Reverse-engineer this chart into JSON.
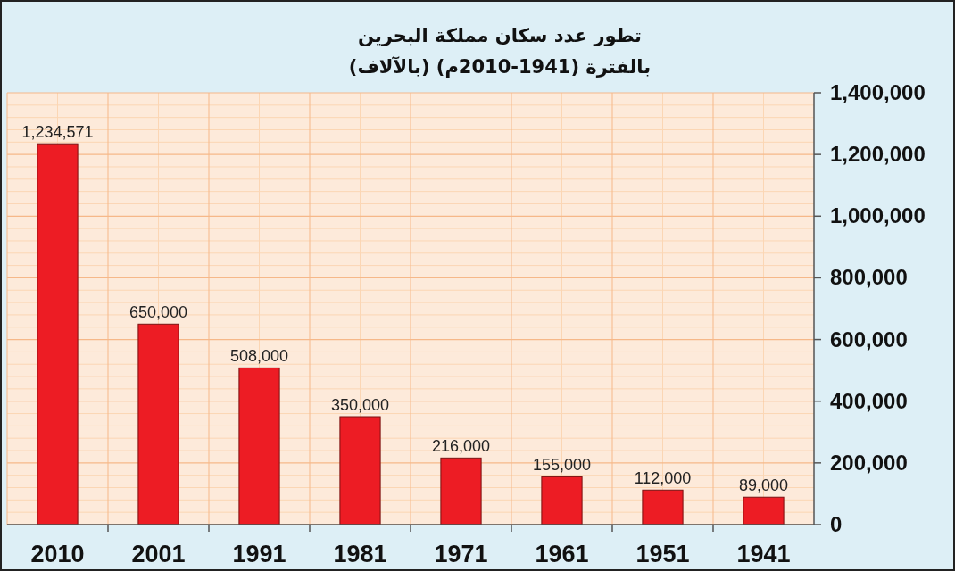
{
  "chart_data": {
    "type": "bar",
    "title": "تطور عدد سكان مملكة البحرين",
    "subtitle": "بالفترة (1941-2010م) (بالآلاف)",
    "categories": [
      "2010",
      "2001",
      "1991",
      "1981",
      "1971",
      "1961",
      "1951",
      "1941"
    ],
    "values": [
      1234571,
      650000,
      508000,
      350000,
      216000,
      155000,
      112000,
      89000
    ],
    "value_labels": [
      "1,234,571",
      "650,000",
      "508,000",
      "350,000",
      "216,000",
      "155,000",
      "112,000",
      "89,000"
    ],
    "color": "#ed1c24",
    "ylim": [
      0,
      1400000
    ],
    "yticks": [
      0,
      {
        "value": 200000,
        "label": "200,000"
      },
      {
        "value": 400000,
        "label": "400,000"
      },
      {
        "value": 600000,
        "label": "600,000"
      },
      {
        "value": 800000,
        "label": "800,000"
      },
      {
        "value": 1000000,
        "label": "1,000,000"
      },
      {
        "value": 1200000,
        "label": "1,200,000"
      },
      {
        "value": 1400000,
        "label": "1,400,000"
      }
    ],
    "grid": true
  }
}
